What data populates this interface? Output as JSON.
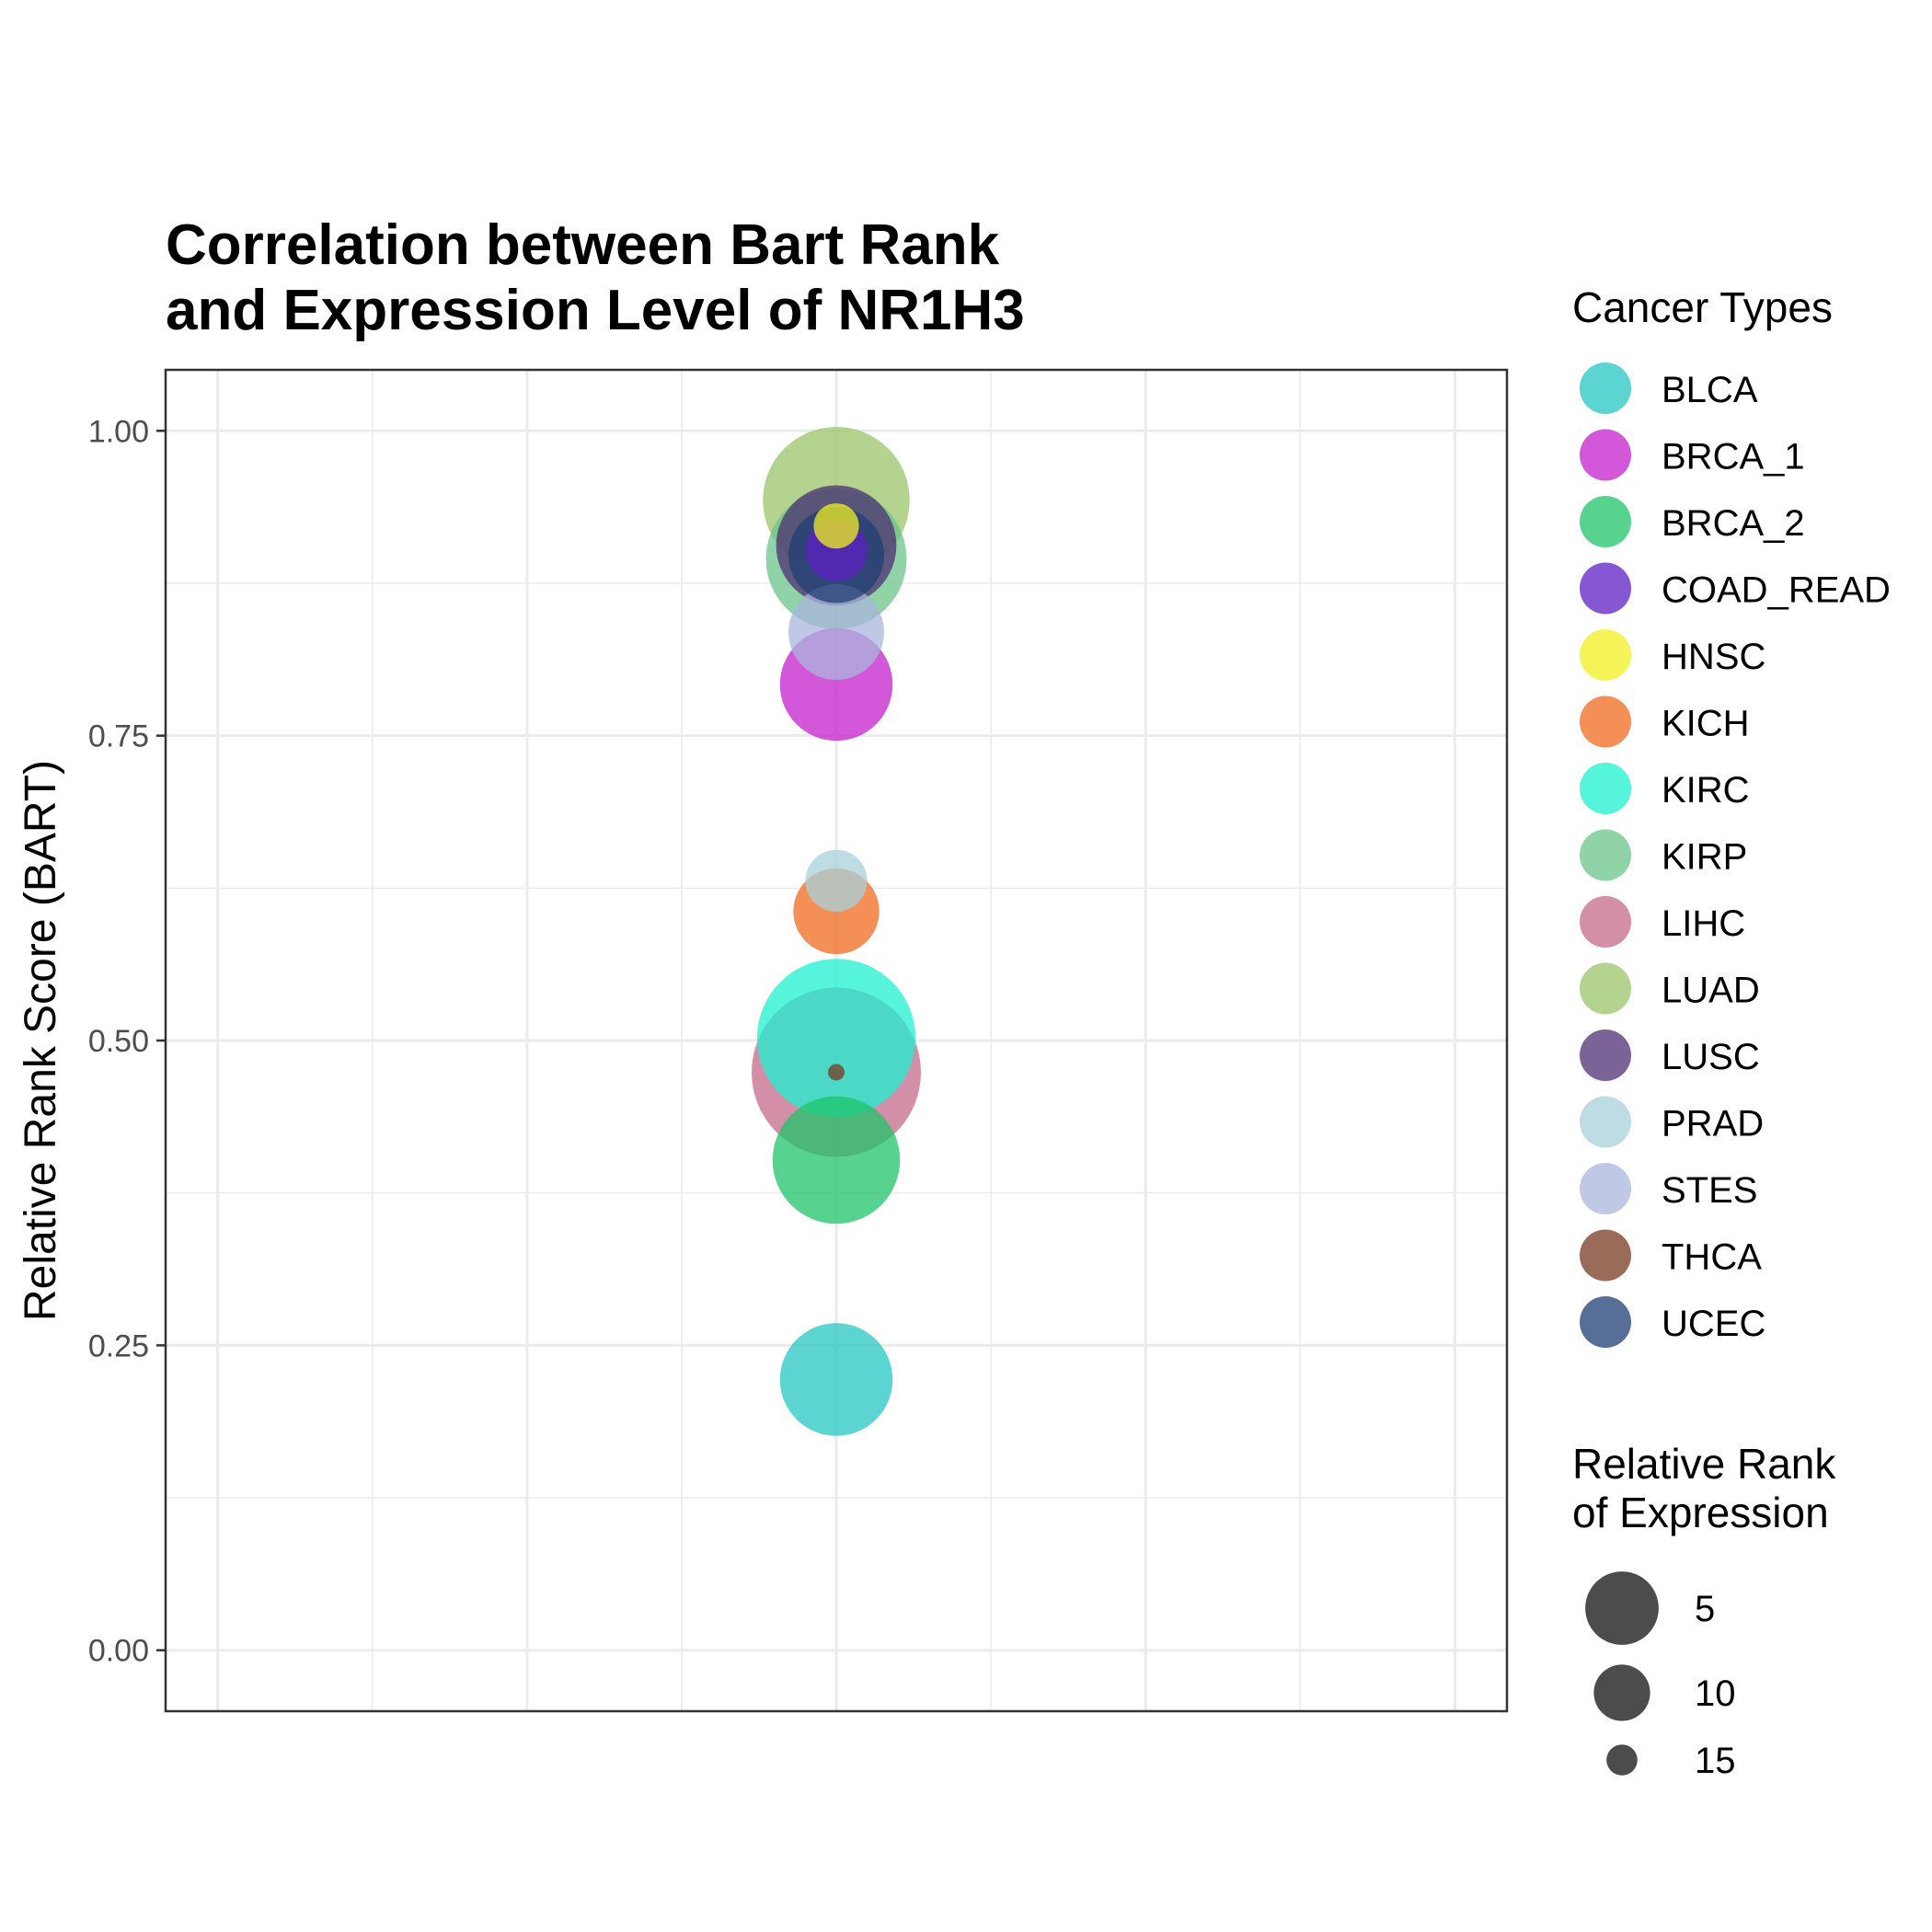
{
  "chart_data": {
    "type": "scatter",
    "title_lines": [
      "Correlation between Bart Rank",
      "and Expression Level of NR1H3"
    ],
    "xlabel": "",
    "ylabel": "Relative Rank Score (BART)",
    "ylim": [
      -0.05,
      1.05
    ],
    "y_ticks": [
      0.0,
      0.25,
      0.5,
      0.75,
      1.0
    ],
    "y_tick_labels": [
      "0.00",
      "0.25",
      "0.50",
      "0.75",
      "1.00"
    ],
    "grid": true,
    "legend_color_title": "Cancer Types",
    "legend_size_title_lines": [
      "Relative Rank",
      "of Expression"
    ],
    "legend_size_breaks": [
      5,
      10,
      15
    ],
    "legend_size_labels": [
      "5",
      "10",
      "15"
    ],
    "points": [
      {
        "name": "BLCA",
        "color": "#26C6C3",
        "y": 0.222,
        "size": 10
      },
      {
        "name": "BRCA_1",
        "color": "#C41FCC",
        "y": 0.792,
        "size": 10
      },
      {
        "name": "BRCA_2",
        "color": "#1FC46A",
        "y": 0.402,
        "size": 8
      },
      {
        "name": "COAD_READ",
        "color": "#5E1FC4",
        "y": 0.902,
        "size": 15
      },
      {
        "name": "HNSC",
        "color": "#F0F020",
        "y": 0.922,
        "size": 16
      },
      {
        "name": "KICH",
        "color": "#F06A1F",
        "y": 0.606,
        "size": 13
      },
      {
        "name": "KIRC",
        "color": "#1FF0D0",
        "y": 0.502,
        "size": 3
      },
      {
        "name": "KIRP",
        "color": "#6AC48A",
        "y": 0.895,
        "size": 6
      },
      {
        "name": "LIHC",
        "color": "#C46A8A",
        "y": 0.474,
        "size": 1
      },
      {
        "name": "LUAD",
        "color": "#9AC46A",
        "y": 0.943,
        "size": 5
      },
      {
        "name": "LUSC",
        "color": "#4E2F73",
        "y": 0.906,
        "size": 9
      },
      {
        "name": "PRAD",
        "color": "#A8D0DA",
        "y": 0.631,
        "size": 15
      },
      {
        "name": "STES",
        "color": "#A9B6DC",
        "y": 0.835,
        "size": 12
      },
      {
        "name": "THCA",
        "color": "#7A3A22",
        "y": 0.474,
        "size": 17
      },
      {
        "name": "UCEC",
        "color": "#1F3F73",
        "y": 0.898,
        "size": 12
      }
    ]
  }
}
